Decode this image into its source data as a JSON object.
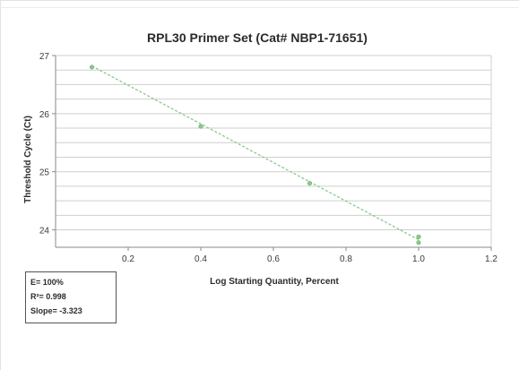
{
  "chart_data": {
    "type": "scatter",
    "title": "RPL30 Primer Set (Cat# NBP1-71651)",
    "xlabel": "Log Starting Quantity, Percent",
    "ylabel": "Threshold Cycle (Ct)",
    "xlim": [
      0,
      1.2
    ],
    "ylim": [
      23.7,
      27
    ],
    "x_ticks": [
      "0.2",
      "0.4",
      "0.6",
      "0.8",
      "1.0",
      "1.2"
    ],
    "y_ticks": [
      "24",
      "25",
      "26",
      "27"
    ],
    "grid": true,
    "series": [
      {
        "points": [
          {
            "x": 0.1,
            "y": 26.8
          },
          {
            "x": 0.4,
            "y": 25.78
          },
          {
            "x": 0.7,
            "y": 24.8
          },
          {
            "x": 1.0,
            "y": 23.88
          },
          {
            "x": 1.0,
            "y": 23.78
          }
        ],
        "trendline": {
          "x": [
            0.1,
            1.0
          ],
          "y": [
            26.82,
            23.83
          ]
        },
        "color": "#8cc98c"
      }
    ],
    "annotations": {
      "efficiency": "E= 100%",
      "r_squared": "R²= 0.998",
      "slope": "Slope= -3.323"
    }
  }
}
